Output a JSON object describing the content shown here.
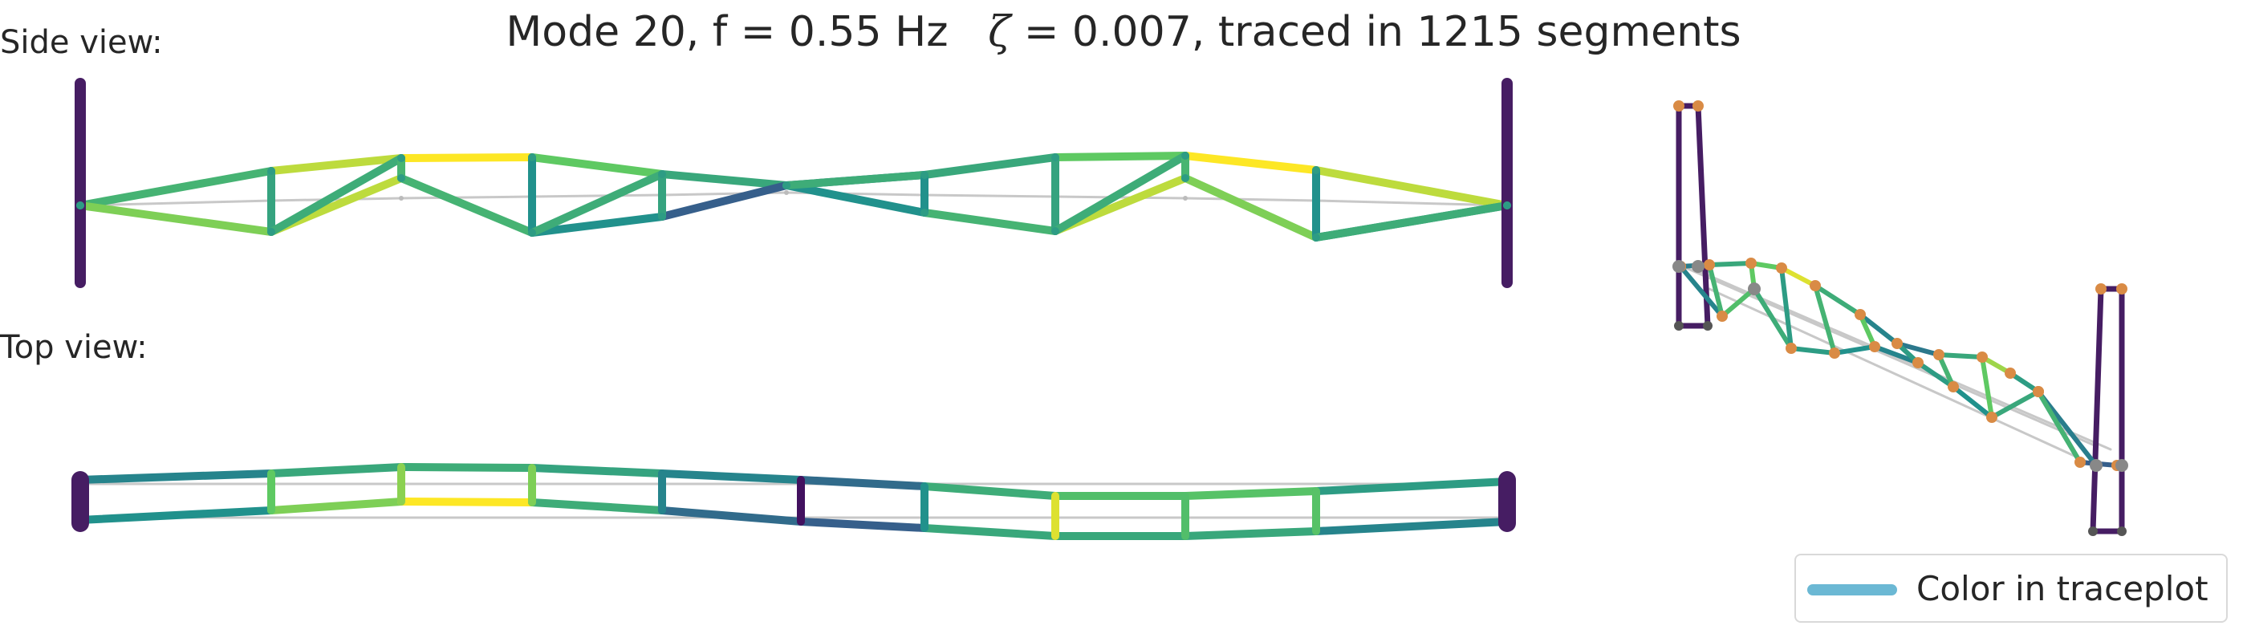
{
  "title": {
    "mode_part": "Mode 20, f = 0.55 Hz",
    "zeta_symbol": "ζ",
    "damping_part": "= 0.007,  traced in 1215 segments"
  },
  "labels": {
    "side_view": "Side view:",
    "top_view": "Top view:"
  },
  "legend": {
    "label": "Color in traceplot",
    "swatch_color": "#6bb8d4"
  },
  "colors": {
    "tower": "#461d63",
    "undeformed": "#c8c8c8",
    "node_orange": "#d98b45",
    "node_gray": "#888888",
    "viridis": [
      "#440154",
      "#3b528b",
      "#21918c",
      "#5ec962",
      "#fde725"
    ]
  }
}
